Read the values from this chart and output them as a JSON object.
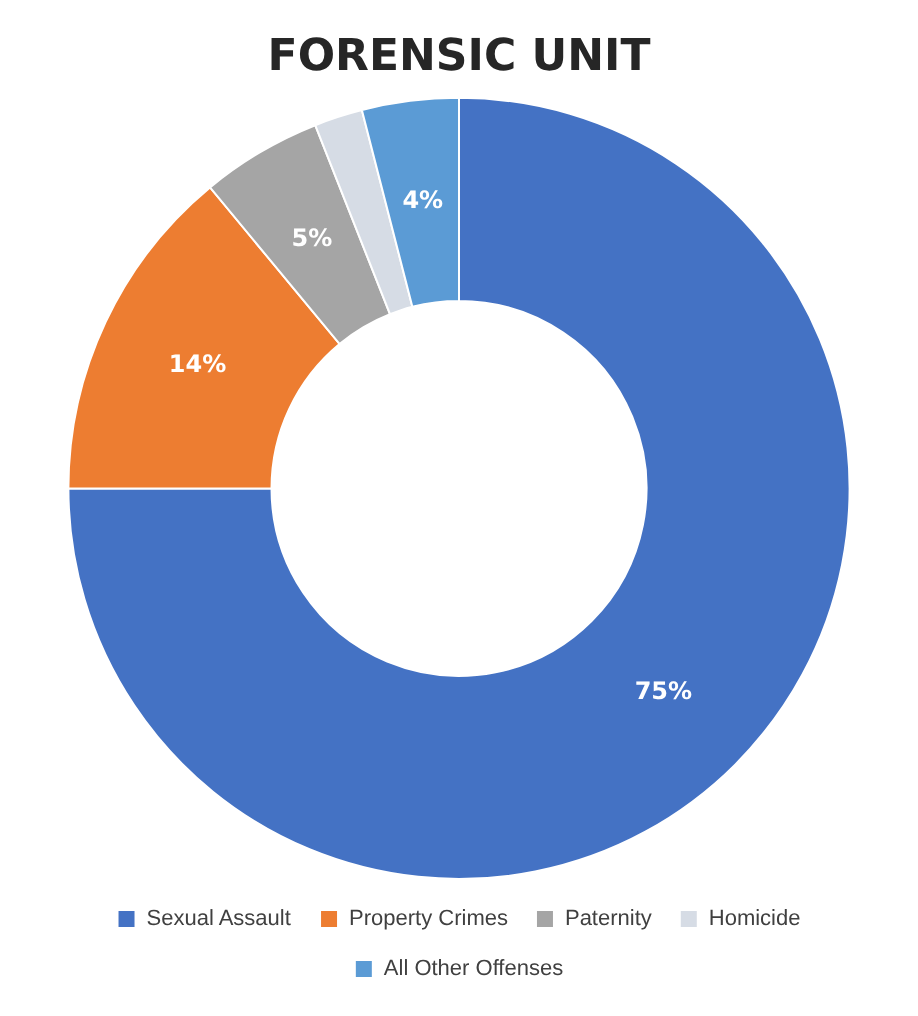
{
  "chart_data": {
    "type": "donut",
    "title": "FORENSIC UNIT",
    "categories": [
      "Sexual Assault",
      "Property Crimes",
      "Paternity",
      "Homicide",
      "All Other Offenses"
    ],
    "values": [
      75,
      14,
      5,
      2,
      4
    ],
    "colors": [
      "#4472c4",
      "#ed7d31",
      "#a5a5a5",
      "#d6dce5",
      "#5b9bd5"
    ],
    "value_labels": [
      "75%",
      "14%",
      "5%",
      null,
      "4%"
    ],
    "legend": "bottom"
  }
}
